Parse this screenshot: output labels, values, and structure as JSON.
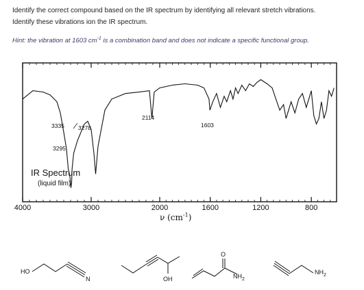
{
  "question": {
    "line1": "Identify the correct compound based on the IR spectrum by identifying  all relevant stretch vibrations.",
    "line2": "Identify these vibrations ion the IR spectrum.",
    "hint_prefix": "Hint: the vibration at 1603 cm",
    "hint_sup": "-1",
    "hint_suffix": " is a combination band and does not indicate a specific functional group."
  },
  "spectrum": {
    "title": "IR Spectrum",
    "subtitle": "(liquid film)",
    "xlabel_main": "ν (cm",
    "xlabel_sup": "-1",
    "xlabel_close": ")"
  },
  "chart_data": {
    "type": "line",
    "title": "IR Spectrum",
    "subtitle": "(liquid film)",
    "xlabel": "ν (cm-1)",
    "ylabel": "",
    "x_reversed": true,
    "xlim": [
      4000,
      600
    ],
    "x_ticks": [
      4000,
      3000,
      2000,
      1600,
      1200,
      800
    ],
    "series": [
      {
        "x": [
          4000,
          3850,
          3700,
          3600,
          3500,
          3450,
          3400,
          3360,
          3335,
          3310,
          3295,
          3285,
          3278,
          3255,
          3200,
          3100,
          3050,
          3000,
          2960,
          2935,
          2900,
          2800,
          2700,
          2600,
          2500,
          2300,
          2150,
          2114,
          2080,
          2000,
          1900,
          1800,
          1700,
          1650,
          1610,
          1603,
          1580,
          1550,
          1520,
          1490,
          1470,
          1440,
          1420,
          1400,
          1380,
          1350,
          1320,
          1290,
          1260,
          1230,
          1200,
          1150,
          1110,
          1080,
          1050,
          1020,
          1000,
          960,
          930,
          900,
          870,
          840,
          820,
          800,
          780,
          760,
          740,
          720,
          700,
          680,
          660,
          640,
          620
        ],
        "y": [
          74,
          80,
          79,
          77,
          72,
          64,
          50,
          38,
          24,
          18,
          10,
          14,
          24,
          35,
          44,
          56,
          58,
          52,
          35,
          20,
          40,
          66,
          74,
          76,
          78,
          79,
          80,
          60,
          79,
          82,
          84,
          85,
          84,
          82,
          74,
          66,
          72,
          78,
          68,
          76,
          72,
          80,
          74,
          82,
          78,
          84,
          80,
          85,
          83,
          86,
          88,
          85,
          82,
          74,
          66,
          70,
          60,
          72,
          64,
          74,
          78,
          68,
          74,
          80,
          62,
          56,
          60,
          72,
          60,
          66,
          80,
          76,
          82
        ]
      }
    ],
    "annotations": [
      "3335",
      "3278",
      "3295",
      "2114",
      "1603"
    ]
  },
  "compounds": [
    {
      "label_a": "HO",
      "label_b": "N"
    },
    {
      "label_a": "OH"
    },
    {
      "label_a": "O",
      "label_b": "NH",
      "label_b_sub": "2"
    },
    {
      "label_a": "NH",
      "label_a_sub": "2"
    }
  ]
}
